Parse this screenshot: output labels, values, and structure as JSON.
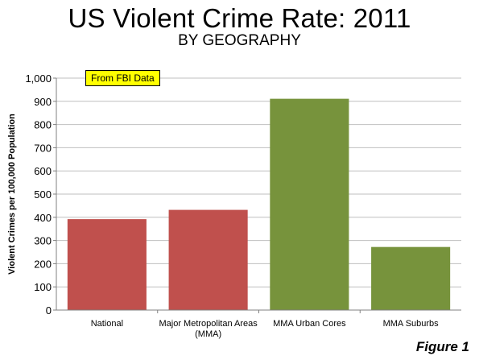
{
  "title": "US Violent Crime Rate: 2011",
  "subtitle": "BY GEOGRAPHY",
  "annotation": "From FBI  Data",
  "figure_caption": "Figure 1",
  "colors": {
    "red_bar": "#c0504d",
    "green_bar": "#77933c",
    "badge": "#ffff00",
    "grid": "#bfbfbf"
  },
  "chart_data": {
    "type": "bar",
    "title": "US Violent Crime Rate: 2011",
    "subtitle": "BY GEOGRAPHY",
    "xlabel": "",
    "ylabel": "Violent Crimes per 100,000 Population",
    "ylim": [
      0,
      1000
    ],
    "yticks": [
      "0",
      "100",
      "200",
      "300",
      "400",
      "500",
      "600",
      "700",
      "800",
      "900",
      "1,000"
    ],
    "grid": true,
    "categories": [
      "National",
      [
        "Major Metropolitan Areas",
        "(MMA)"
      ],
      "MMA Urban Cores",
      "MMA Suburbs"
    ],
    "values": [
      392,
      432,
      911,
      272
    ],
    "bar_colors": [
      "#c0504d",
      "#c0504d",
      "#77933c",
      "#77933c"
    ]
  }
}
